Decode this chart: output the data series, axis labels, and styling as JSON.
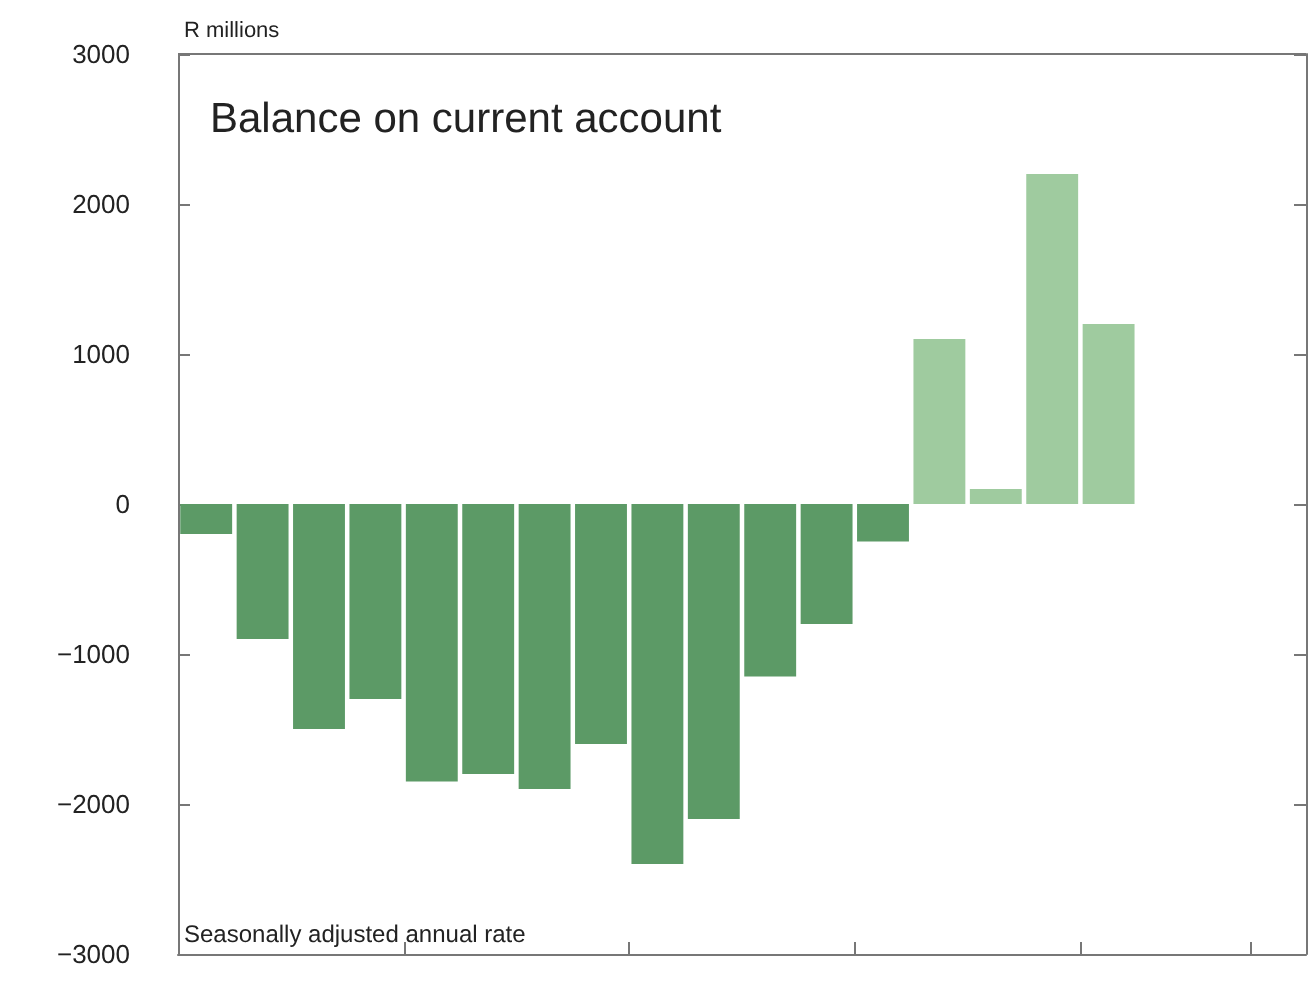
{
  "chart_data": {
    "type": "bar",
    "title": "Balance on current account",
    "ylabel": "R millions",
    "annotations": [
      "Seasonally adjusted annual rate"
    ],
    "categories": [
      null,
      null,
      null,
      null,
      null,
      null,
      null,
      null,
      null,
      null,
      null,
      null,
      null,
      null,
      null,
      null,
      null,
      null,
      null,
      null
    ],
    "values": [
      -200,
      -900,
      -1500,
      -1300,
      -1850,
      -1800,
      -1900,
      -1600,
      -2400,
      -2100,
      -1150,
      -800,
      -250,
      1100,
      100,
      2200,
      1200,
      null,
      null,
      null
    ],
    "colors": [
      "#5c9a66",
      "#5c9a66",
      "#5c9a66",
      "#5c9a66",
      "#5c9a66",
      "#5c9a66",
      "#5c9a66",
      "#5c9a66",
      "#5c9a66",
      "#5c9a66",
      "#5c9a66",
      "#5c9a66",
      "#5c9a66",
      "#9fcb9f",
      "#9fcb9f",
      "#9fcb9f",
      "#9fcb9f",
      null,
      null,
      null
    ],
    "ylim": [
      -3000,
      3000
    ],
    "yticks": [
      {
        "value": -3000,
        "label": "−3000"
      },
      {
        "value": -2000,
        "label": "−2000"
      },
      {
        "value": -1000,
        "label": "−1000"
      },
      0,
      1000,
      2000,
      3000
    ],
    "grid": false
  }
}
